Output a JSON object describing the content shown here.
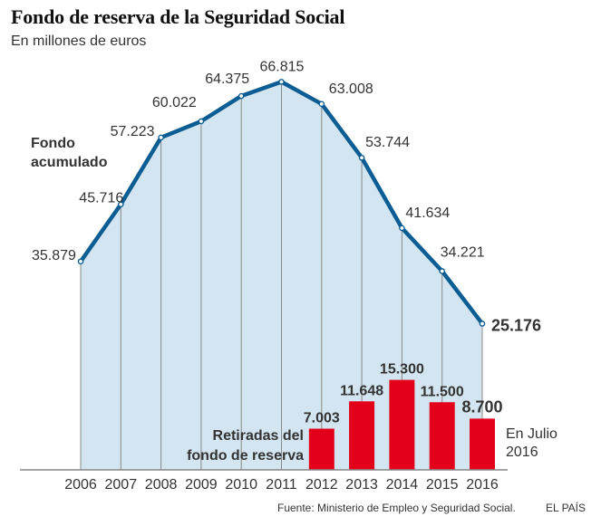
{
  "header": {
    "title": "Fondo de reserva de la Seguridad Social",
    "subtitle": "En millones de euros"
  },
  "footer": {
    "source": "Fuente: Ministerio de Empleo y Seguridad Social.",
    "brand": "EL PAÍS"
  },
  "colors": {
    "line": "#0b5d93",
    "area": "#d2e5f0",
    "bar": "#e2001a",
    "gridline": "#8a8a8a",
    "text": "#333333"
  },
  "chart_data": [
    {
      "type": "area",
      "name": "Fondo acumulado",
      "label_line1": "Fondo",
      "label_line2": "acumulado",
      "x": [
        "2006",
        "2007",
        "2008",
        "2009",
        "2010",
        "2011",
        "2012",
        "2013",
        "2014",
        "2015",
        "2016"
      ],
      "values": [
        35.879,
        45.716,
        57.223,
        60.022,
        64.375,
        66.815,
        63.008,
        53.744,
        41.634,
        34.221,
        25.176
      ],
      "value_labels": [
        "35.879",
        "45.716",
        "57.223",
        "60.022",
        "64.375",
        "66.815",
        "63.008",
        "53.744",
        "41.634",
        "34.221",
        "25.176"
      ],
      "ylim": [
        0,
        70
      ]
    },
    {
      "type": "bar",
      "name": "Retiradas del fondo de reserva",
      "label_line1": "Retiradas del",
      "label_line2": "fondo de reserva",
      "categories": [
        "2012",
        "2013",
        "2014",
        "2015",
        "2016"
      ],
      "values": [
        7.003,
        11.648,
        15.3,
        11.5,
        8.7
      ],
      "value_labels": [
        "7.003",
        "11.648",
        "15.300",
        "11.500",
        "8.700"
      ],
      "annotation_line1": "En Julio",
      "annotation_line2": "2016",
      "ylim": [
        0,
        20
      ]
    }
  ]
}
